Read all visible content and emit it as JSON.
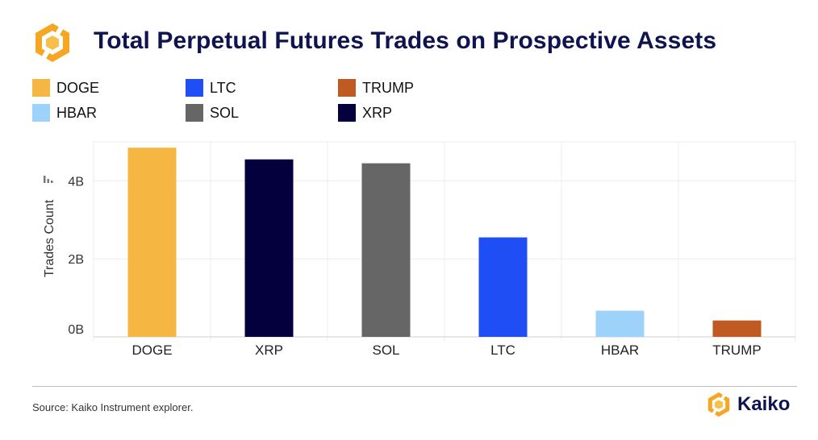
{
  "header": {
    "title": "Total Perpetual Futures Trades on Prospective Assets"
  },
  "legend": [
    {
      "label": "DOGE",
      "color": "#F5B642"
    },
    {
      "label": "LTC",
      "color": "#1F4EF5"
    },
    {
      "label": "TRUMP",
      "color": "#BF5A22"
    },
    {
      "label": "HBAR",
      "color": "#9DD3FA"
    },
    {
      "label": "SOL",
      "color": "#666666"
    },
    {
      "label": "XRP",
      "color": "#03003D"
    }
  ],
  "chart_data": {
    "type": "bar",
    "title": "Total Perpetual Futures Trades on Prospective Assets",
    "xlabel": "",
    "ylabel": "Trades Count",
    "categories": [
      "DOGE",
      "XRP",
      "SOL",
      "LTC",
      "HBAR",
      "TRUMP"
    ],
    "values": [
      4.85,
      4.55,
      4.45,
      2.55,
      0.67,
      0.42
    ],
    "value_units": "B",
    "colors": [
      "#F5B642",
      "#03003D",
      "#666666",
      "#1F4EF5",
      "#9DD3FA",
      "#BF5A22"
    ],
    "ylim": [
      0,
      5
    ],
    "yticks": [
      {
        "value": 0,
        "label": "0B"
      },
      {
        "value": 2,
        "label": "2B"
      },
      {
        "value": 4,
        "label": "4B"
      }
    ],
    "grid": true
  },
  "footer": {
    "source": "Source: Kaiko Instrument explorer.",
    "brand": "Kaiko"
  }
}
